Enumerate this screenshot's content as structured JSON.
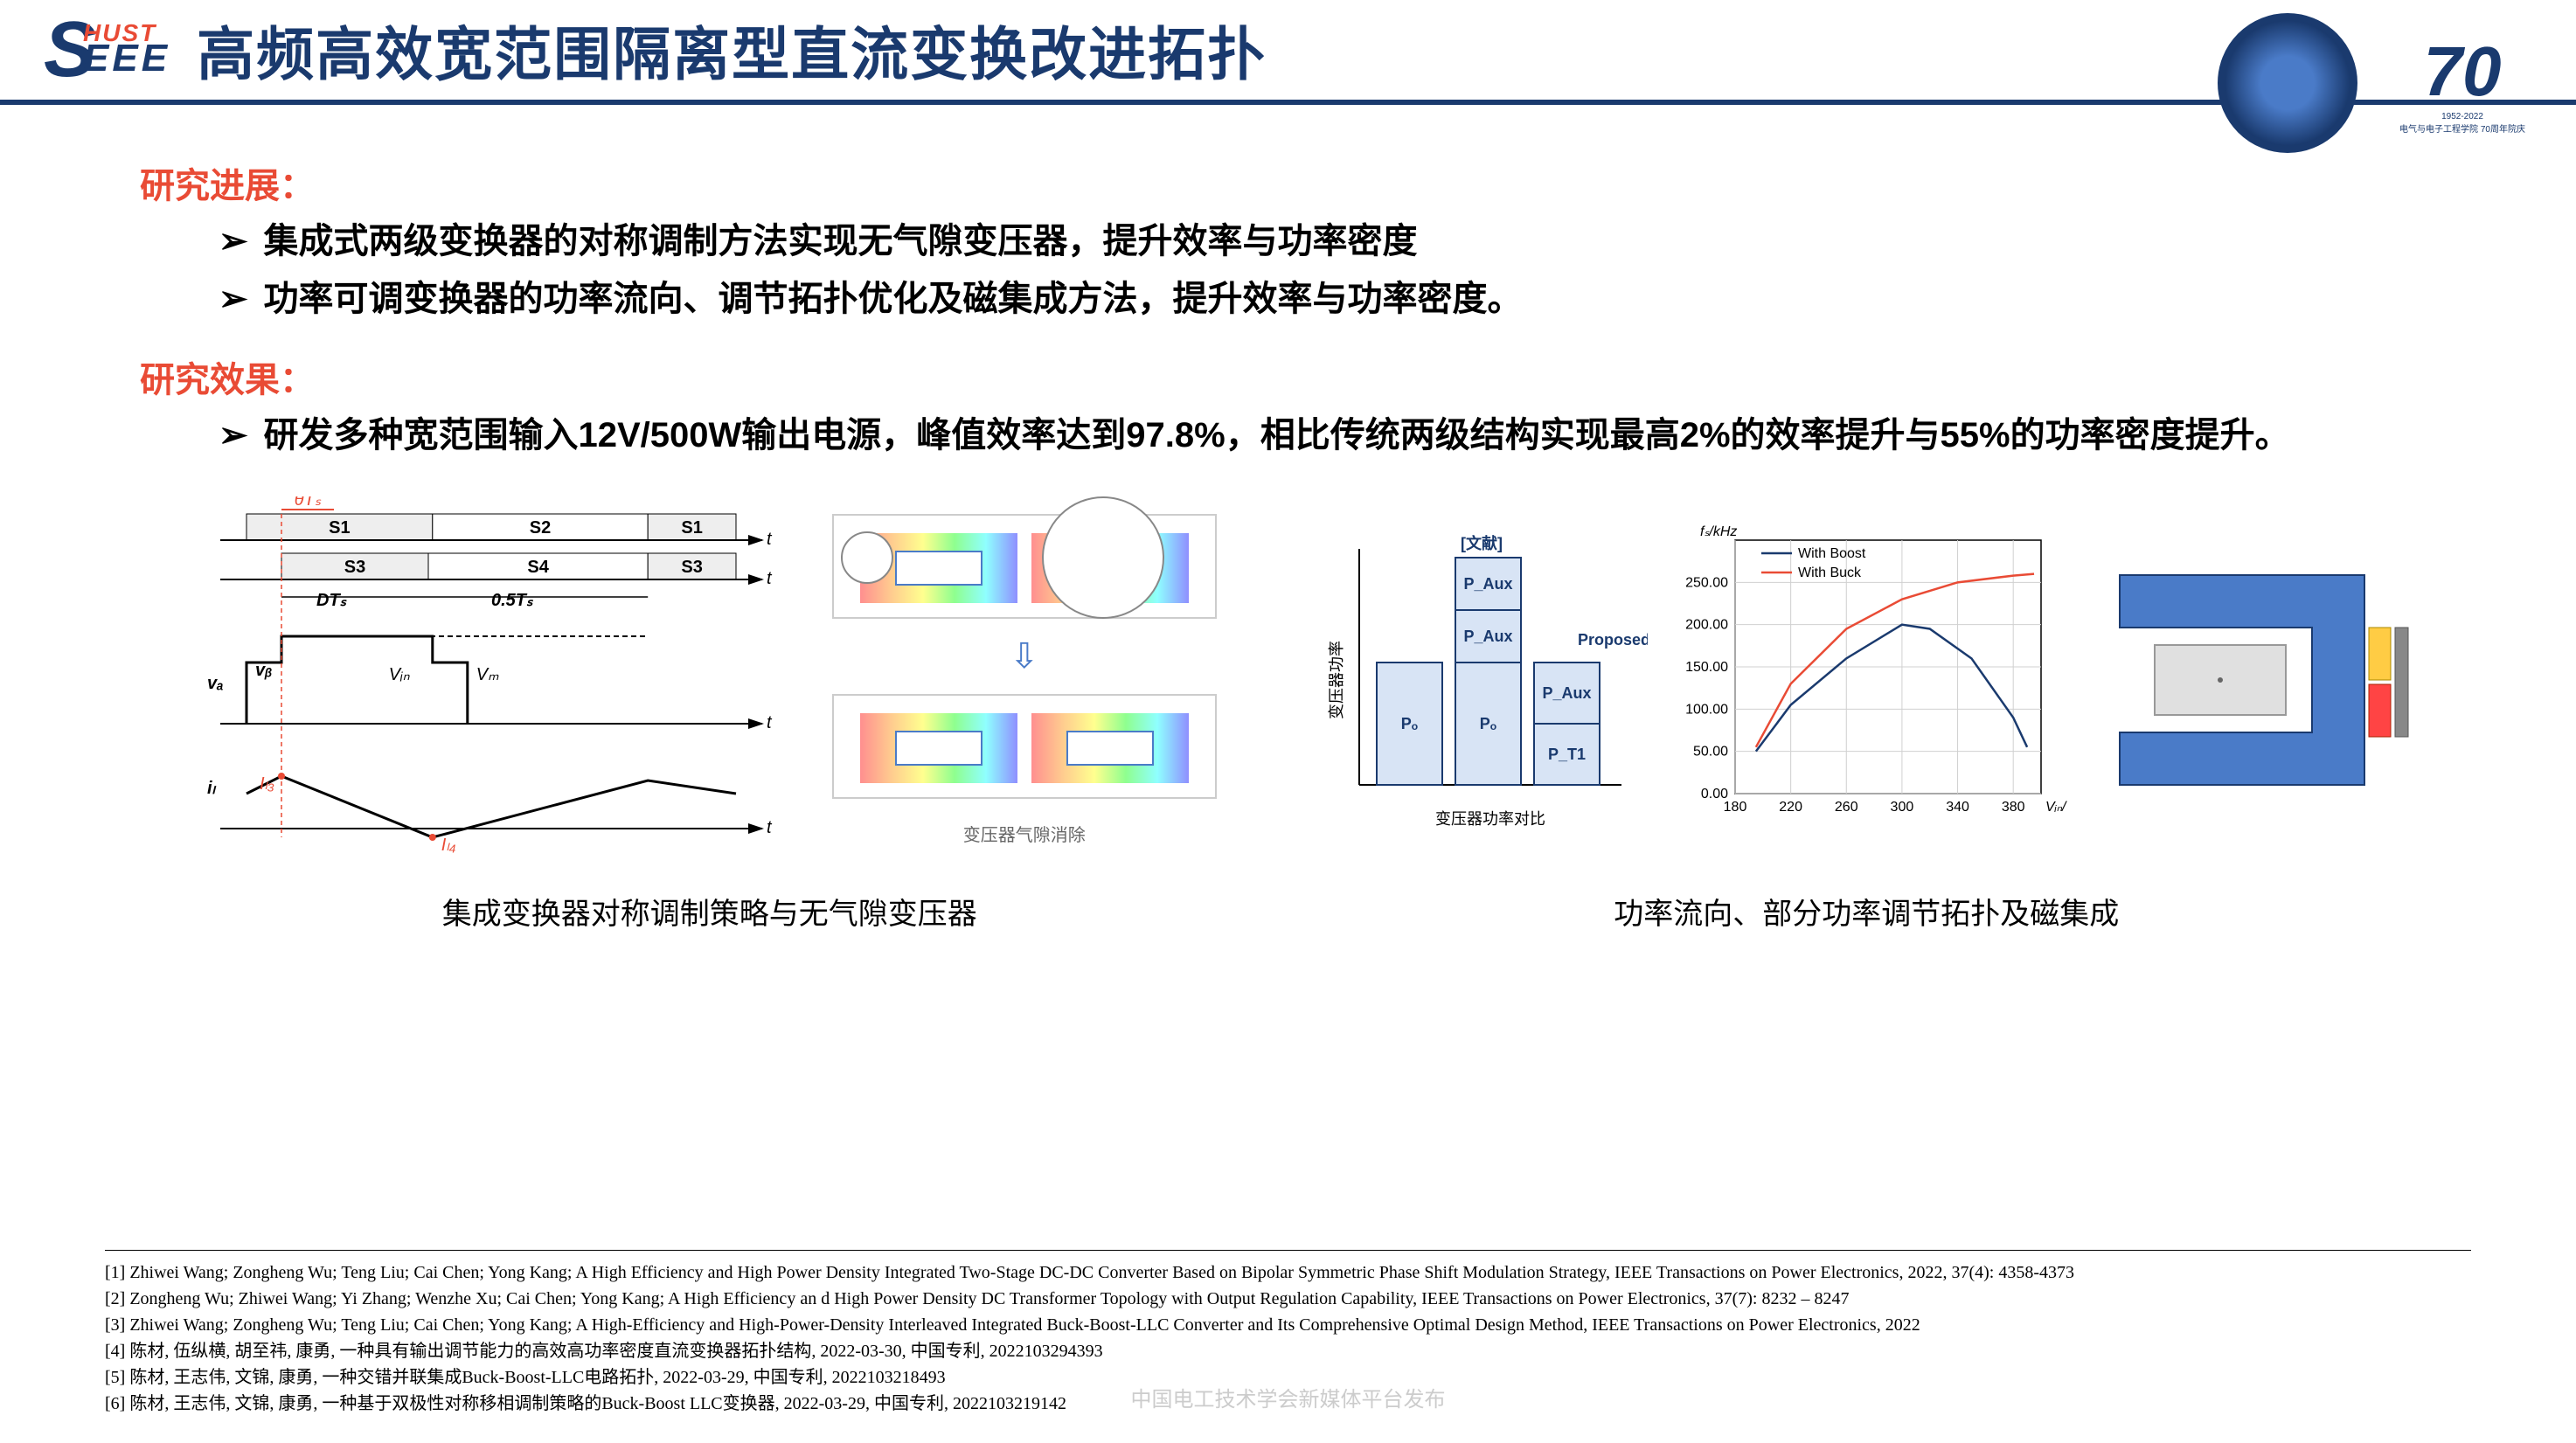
{
  "header": {
    "logo_hust": "HUST",
    "logo_eee": "EEE",
    "title": "高频高效宽范围隔离型直流变换改进拓扑",
    "anniv_number": "70",
    "anniv_sub1": "1952-2022",
    "anniv_sub2": "电气与电子工程学院 70周年院庆"
  },
  "progress_label": "研究进展：",
  "progress_bullets": [
    "集成式两级变换器的对称调制方法实现无气隙变压器，提升效率与功率密度",
    "功率可调变换器的功率流向、调节拓扑优化及磁集成方法，提升效率与功率密度。"
  ],
  "results_label": "研究效果：",
  "results_bullets": [
    "研发多种宽范围输入12V/500W输出电源，峰值效率达到97.8%，相比传统两级结构实现最高2%的效率提升与55%的功率密度提升。"
  ],
  "figure_left_caption": "集成变换器对称调制策略与无气隙变压器",
  "figure_right_caption": "功率流向、部分功率调节拓扑及磁集成",
  "field_subcaption": "变压器气隙消除",
  "timing": {
    "top_labels": [
      "S1",
      "S2",
      "S1"
    ],
    "mid_labels": [
      "S3",
      "S4",
      "S3"
    ],
    "theta_label": "θTₛ",
    "dt_label": "DTₛ",
    "halft_label": "0.5Tₛ",
    "va": "vₐ",
    "vb": "vᵦ",
    "vin": "Vᵢₙ",
    "vm": "Vₘ",
    "il": "iₗ",
    "il3": "Iₗ₃",
    "il4": "Iₗ₄",
    "t": "t",
    "axis_color": "#000000",
    "red_color": "#e94b35",
    "blue_color": "#4a7bc8",
    "fontsize": 20
  },
  "power_chart": {
    "ylabel": "变压器功率",
    "xlabel": "变压器功率对比",
    "legend_marker": "[文献]",
    "proposed_label": "Proposed",
    "left_blocks": [
      {
        "label": "Pₒ",
        "h": 140
      }
    ],
    "mid_blocks": [
      {
        "label": "P_Aux",
        "h": 60
      },
      {
        "label": "P_Aux",
        "h": 60
      },
      {
        "label": "Pₒ",
        "h": 140
      }
    ],
    "right_blocks": [
      {
        "label": "P_Aux",
        "h": 70
      },
      {
        "label": "P_T1",
        "h": 70
      }
    ],
    "block_fill": "#d8e4f5",
    "block_border": "#1a3a6e",
    "text_color": "#1a3a6e",
    "fontsize": 18
  },
  "line_chart": {
    "ylabel": "fₛ/kHz",
    "xlabel": "Vᵢₙ/V",
    "xlim": [
      180,
      400
    ],
    "ylim": [
      0,
      300
    ],
    "xticks": [
      180,
      220,
      260,
      300,
      340,
      380
    ],
    "yticks": [
      0,
      50,
      100,
      150,
      200,
      250
    ],
    "series": [
      {
        "name": "With Boost",
        "color": "#1a3a6e",
        "points": [
          [
            195,
            50
          ],
          [
            220,
            105
          ],
          [
            260,
            160
          ],
          [
            300,
            200
          ],
          [
            320,
            195
          ],
          [
            350,
            160
          ],
          [
            380,
            90
          ],
          [
            390,
            55
          ]
        ]
      },
      {
        "name": "With Buck",
        "color": "#e94b35",
        "points": [
          [
            195,
            55
          ],
          [
            220,
            130
          ],
          [
            260,
            195
          ],
          [
            300,
            230
          ],
          [
            340,
            250
          ],
          [
            380,
            258
          ],
          [
            395,
            260
          ]
        ]
      }
    ],
    "grid_color": "#d0d0d0",
    "fontsize": 16
  },
  "core": {
    "frame_color": "#4a7bc8",
    "winding1_color": "#ffcc44",
    "winding2_color": "#ff4444",
    "sheet_color": "#e0e0e0"
  },
  "references": [
    "[1] Zhiwei Wang; Zongheng Wu; Teng Liu; Cai Chen; Yong Kang; A High Efficiency and High Power Density Integrated Two-Stage DC-DC Converter Based on Bipolar Symmetric Phase Shift Modulation Strategy, IEEE Transactions on Power Electronics, 2022, 37(4): 4358-4373",
    "[2] Zongheng Wu; Zhiwei Wang; Yi Zhang; Wenzhe Xu; Cai Chen; Yong Kang; A High Efficiency an d High Power Density DC Transformer Topology with Output Regulation Capability, IEEE Transactions on Power Electronics, 37(7): 8232 – 8247",
    "[3] Zhiwei Wang; Zongheng Wu; Teng Liu; Cai Chen; Yong Kang; A High-Efficiency and High-Power-Density Interleaved Integrated Buck-Boost-LLC Converter and Its Comprehensive Optimal Design Method, IEEE Transactions on Power Electronics, 2022",
    "[4] 陈材, 伍纵横, 胡至祎, 康勇, 一种具有输出调节能力的高效高功率密度直流变换器拓扑结构, 2022-03-30, 中国专利, 2022103294393",
    "[5] 陈材, 王志伟, 文锦, 康勇, 一种交错并联集成Buck-Boost-LLC电路拓扑, 2022-03-29, 中国专利, 2022103218493",
    "[6] 陈材, 王志伟, 文锦, 康勇, 一种基于双极性对称移相调制策略的Buck-Boost LLC变换器, 2022-03-29, 中国专利, 2022103219142"
  ],
  "watermark": "中国电工技术学会新媒体平台发布"
}
